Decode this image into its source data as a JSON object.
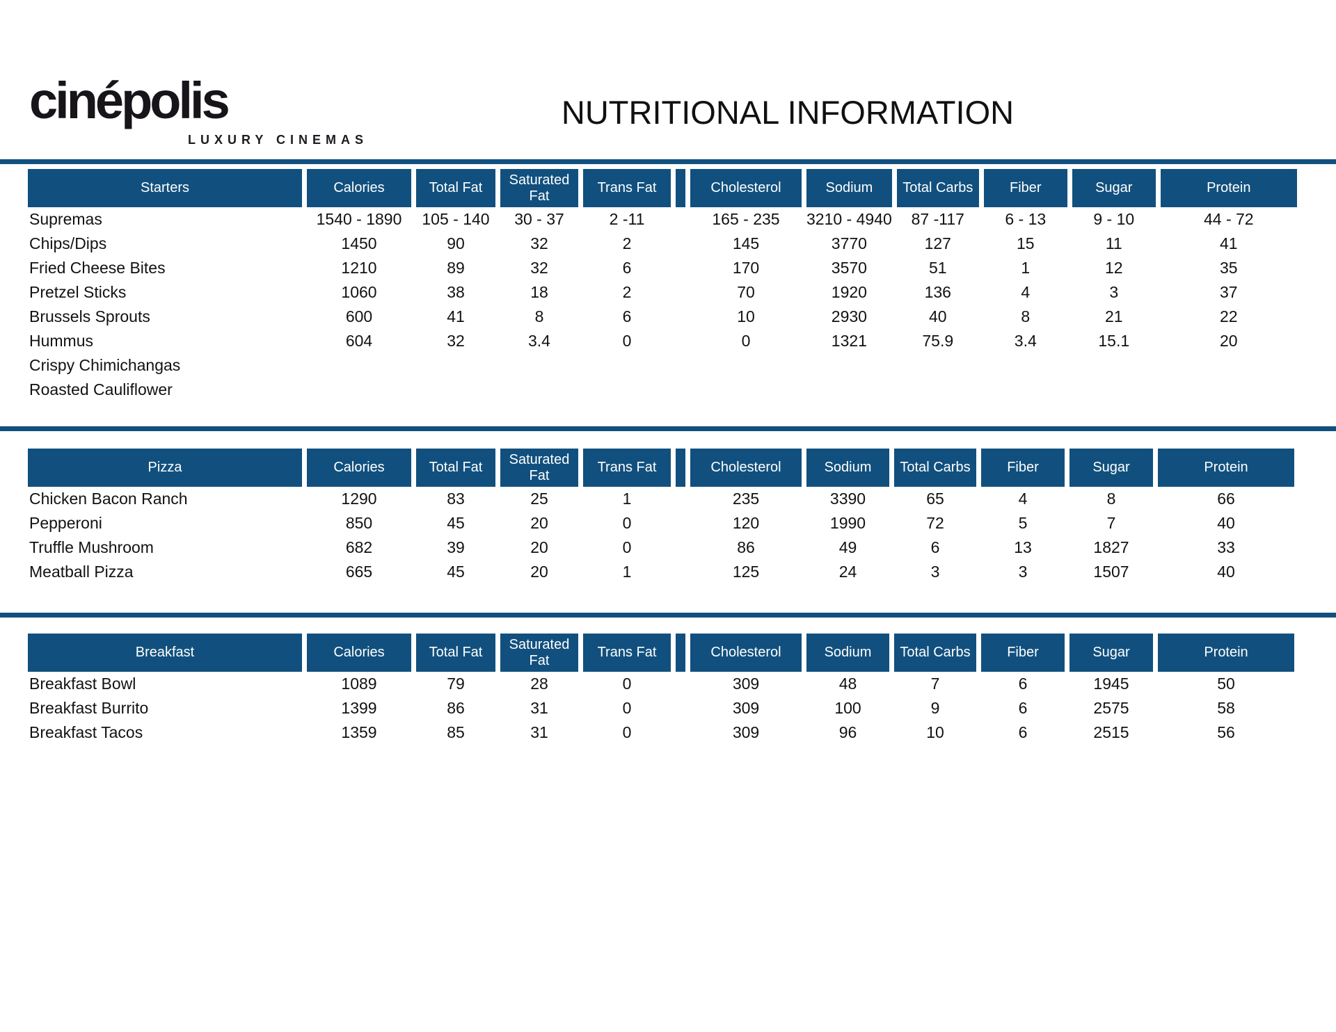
{
  "page": {
    "title": "NUTRITIONAL INFORMATION"
  },
  "logo": {
    "brand": "cinépolis",
    "tagline": "LUXURY CINEMAS"
  },
  "colors": {
    "header_bg": "#11507e",
    "header_text": "#ffffff",
    "body_text": "#121212",
    "rule": "#11507e"
  },
  "columns": [
    "Calories",
    "Total Fat",
    "Saturated Fat",
    "Trans Fat",
    "Cholesterol",
    "Sodium",
    "Total Carbs",
    "Fiber",
    "Sugar",
    "Protein"
  ],
  "tables": [
    {
      "category": "Starters",
      "rows": [
        {
          "name": "Supremas",
          "values": [
            "1540 - 1890",
            "105 - 140",
            "30 - 37",
            "2 -11",
            "165 - 235",
            "3210 - 4940",
            "87 -117",
            "6 - 13",
            "9 - 10",
            "44 - 72"
          ]
        },
        {
          "name": "Chips/Dips",
          "values": [
            "1450",
            "90",
            "32",
            "2",
            "145",
            "3770",
            "127",
            "15",
            "11",
            "41"
          ]
        },
        {
          "name": "Fried Cheese Bites",
          "values": [
            "1210",
            "89",
            "32",
            "6",
            "170",
            "3570",
            "51",
            "1",
            "12",
            "35"
          ]
        },
        {
          "name": "Pretzel Sticks",
          "values": [
            "1060",
            "38",
            "18",
            "2",
            "70",
            "1920",
            "136",
            "4",
            "3",
            "37"
          ]
        },
        {
          "name": "Brussels Sprouts",
          "values": [
            "600",
            "41",
            "8",
            "6",
            "10",
            "2930",
            "40",
            "8",
            "21",
            "22"
          ]
        },
        {
          "name": "Hummus",
          "values": [
            "604",
            "32",
            "3.4",
            "0",
            "0",
            "1321",
            "75.9",
            "3.4",
            "15.1",
            "20"
          ]
        },
        {
          "name": "Crispy Chimichangas",
          "values": [
            "",
            "",
            "",
            "",
            "",
            "",
            "",
            "",
            "",
            ""
          ]
        },
        {
          "name": "Roasted Cauliflower",
          "values": [
            "",
            "",
            "",
            "",
            "",
            "",
            "",
            "",
            "",
            ""
          ]
        }
      ]
    },
    {
      "category": "Pizza",
      "rows": [
        {
          "name": "Chicken Bacon Ranch",
          "values": [
            "1290",
            "83",
            "25",
            "1",
            "235",
            "3390",
            "65",
            "4",
            "8",
            "66"
          ]
        },
        {
          "name": "Pepperoni",
          "values": [
            "850",
            "45",
            "20",
            "0",
            "120",
            "1990",
            "72",
            "5",
            "7",
            "40"
          ]
        },
        {
          "name": "Truffle Mushroom",
          "values": [
            "682",
            "39",
            "20",
            "0",
            "86",
            "49",
            "6",
            "13",
            "1827",
            "33"
          ]
        },
        {
          "name": "Meatball Pizza",
          "values": [
            "665",
            "45",
            "20",
            "1",
            "125",
            "24",
            "3",
            "3",
            "1507",
            "40"
          ]
        }
      ]
    },
    {
      "category": "Breakfast",
      "rows": [
        {
          "name": "Breakfast Bowl",
          "values": [
            "1089",
            "79",
            "28",
            "0",
            "309",
            "48",
            "7",
            "6",
            "1945",
            "50"
          ]
        },
        {
          "name": "Breakfast Burrito",
          "values": [
            "1399",
            "86",
            "31",
            "0",
            "309",
            "100",
            "9",
            "6",
            "2575",
            "58"
          ]
        },
        {
          "name": "Breakfast Tacos",
          "values": [
            "1359",
            "85",
            "31",
            "0",
            "309",
            "96",
            "10",
            "6",
            "2515",
            "56"
          ]
        }
      ]
    }
  ]
}
